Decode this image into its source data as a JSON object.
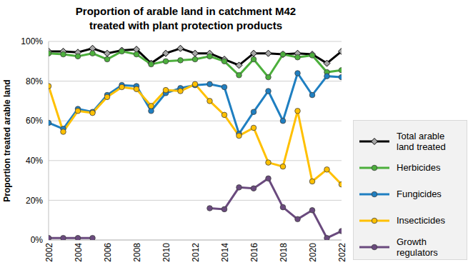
{
  "chart_data": {
    "type": "line",
    "title": "Proportion of arable land in catchment M42\ntreated with plant protection products",
    "y_label": "Proportion treated arable land",
    "x": [
      2002,
      2003,
      2004,
      2005,
      2006,
      2007,
      2008,
      2009,
      2010,
      2011,
      2012,
      2013,
      2014,
      2015,
      2016,
      2017,
      2018,
      2019,
      2020,
      2021,
      2022
    ],
    "xlim": [
      2002,
      2022
    ],
    "xticks": [
      2002,
      2004,
      2006,
      2008,
      2010,
      2012,
      2014,
      2016,
      2018,
      2020,
      2022
    ],
    "ylim": [
      0,
      100
    ],
    "yticks": [
      {
        "value": 0,
        "label": "0%"
      },
      {
        "value": 20,
        "label": "20%"
      },
      {
        "value": 40,
        "label": "40%"
      },
      {
        "value": 60,
        "label": "60%"
      },
      {
        "value": 80,
        "label": "80%"
      },
      {
        "value": 100,
        "label": "100%"
      }
    ],
    "grid": true,
    "legend": "right",
    "series": [
      {
        "name": "Total arable land treated",
        "color": "#000000",
        "marker": "diamond",
        "values": [
          95,
          95,
          94.5,
          96.5,
          94,
          95.5,
          96,
          89,
          94,
          96.5,
          94,
          94,
          91,
          88,
          94,
          94,
          93.5,
          94,
          93.5,
          89,
          95
        ]
      },
      {
        "name": "Herbicides",
        "color": "#4caf3c",
        "marker": "circle",
        "values": [
          94,
          93.5,
          92.5,
          94,
          91,
          95,
          93.5,
          88.5,
          90,
          90.5,
          91,
          92.5,
          90,
          83,
          91,
          82,
          93.5,
          92,
          93,
          84.5,
          85.5
        ]
      },
      {
        "name": "Fungicides",
        "color": "#1f7fc1",
        "marker": "circle",
        "values": [
          59,
          56,
          66,
          64.5,
          73,
          78,
          77.5,
          65,
          74,
          76.5,
          78,
          78.5,
          77,
          53.5,
          64.5,
          75,
          60,
          84,
          73,
          82.5,
          82
        ]
      },
      {
        "name": "Insecticides",
        "color": "#ffc000",
        "marker": "circle",
        "values": [
          77.5,
          54.5,
          65,
          64,
          72,
          77,
          76,
          67.5,
          75.5,
          75,
          78.5,
          70,
          63,
          52.5,
          56.5,
          39,
          37,
          65,
          29.5,
          35.5,
          28
        ]
      },
      {
        "name": "Growth regulators",
        "color": "#6a4a7e",
        "marker": "circle",
        "values": [
          1,
          1,
          1,
          1,
          null,
          null,
          null,
          null,
          null,
          null,
          null,
          16,
          15.5,
          26.5,
          26,
          31,
          16.5,
          10.5,
          15,
          1,
          4.5
        ]
      }
    ]
  }
}
